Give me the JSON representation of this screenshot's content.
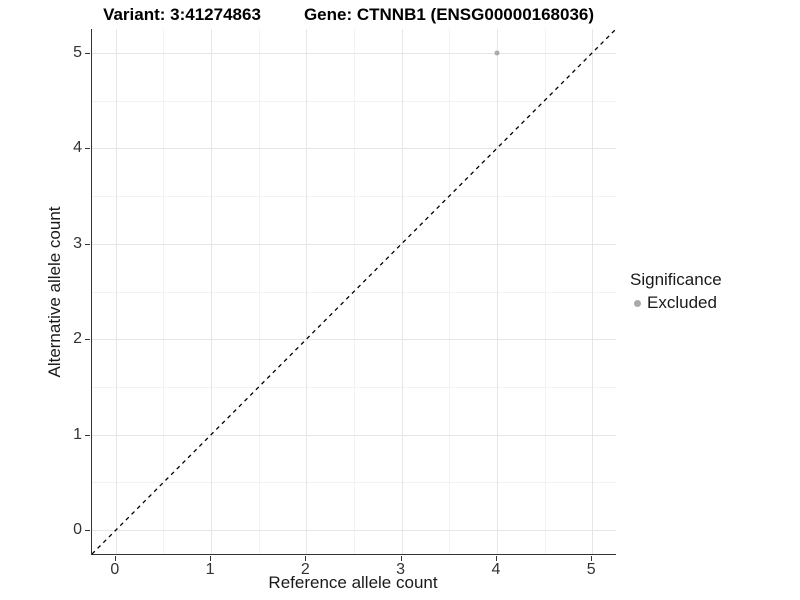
{
  "titles": {
    "variant": "Variant: 3:41274863",
    "gene": "Gene: CTNNB1 (ENSG00000168036)"
  },
  "chart_data": {
    "type": "scatter",
    "title_left": "Variant: 3:41274863",
    "title_right": "Gene: CTNNB1 (ENSG00000168036)",
    "xlabel": "Reference allele count",
    "ylabel": "Alternative allele count",
    "xlim": [
      -0.25,
      5.25
    ],
    "ylim": [
      -0.25,
      5.25
    ],
    "x_ticks": [
      0,
      1,
      2,
      3,
      4,
      5
    ],
    "y_ticks": [
      0,
      1,
      2,
      3,
      4,
      5
    ],
    "x_minor_ticks": [
      0.5,
      1.5,
      2.5,
      3.5,
      4.5
    ],
    "y_minor_ticks": [
      0.5,
      1.5,
      2.5,
      3.5,
      4.5
    ],
    "grid": true,
    "points": [
      {
        "x": 4,
        "y": 5,
        "series": "Excluded"
      }
    ],
    "reference_line": {
      "type": "identity",
      "style": "dashed",
      "color": "#000000"
    },
    "legend": {
      "title": "Significance",
      "position": "right",
      "entries": [
        {
          "label": "Excluded",
          "color": "#aaaaaa"
        }
      ]
    }
  },
  "colors": {
    "background": "#ffffff",
    "axis_line": "#333333",
    "grid_major": "#e6e6e6",
    "grid_minor": "#f2f2f2",
    "point_excluded": "#aaaaaa",
    "reference_line": "#000000",
    "text": "#1a1a1a"
  }
}
